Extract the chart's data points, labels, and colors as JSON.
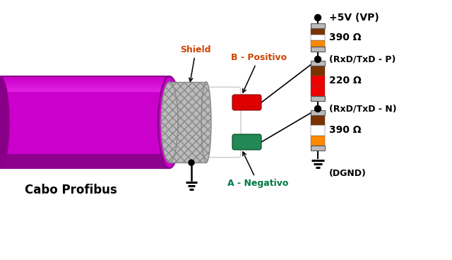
{
  "bg_color": "#ffffff",
  "cable_color": "#cc00cc",
  "cable_dark": "#880088",
  "cable_highlight": "#ff55ff",
  "cable_shadow": "#660066",
  "shield_color": "#bbbbbb",
  "shield_dark": "#888888",
  "wire_red": "#dd0000",
  "wire_green": "#228855",
  "resistor_gray": "#bbbbbb",
  "resistor_orange": "#ff8800",
  "resistor_brown": "#7a3300",
  "resistor_red": "#ee0000",
  "resistor_white": "#ffffff",
  "text_color": "#000000",
  "orange_label": "#cc4400",
  "green_label": "#007744",
  "label_shield": "Shield",
  "label_positivo": "B - Positivo",
  "label_negativo": "A - Negativo",
  "label_cabo": "Cabo Profibus",
  "label_5v": "+5V (VP)",
  "label_390_top": "390 Ω",
  "label_rxd_p": "(RxD/TxD - P)",
  "label_220": "220 Ω",
  "label_rxd_n": "(RxD/TxD - N)",
  "label_390_bot": "390 Ω",
  "label_dgnd": "(DGND)"
}
